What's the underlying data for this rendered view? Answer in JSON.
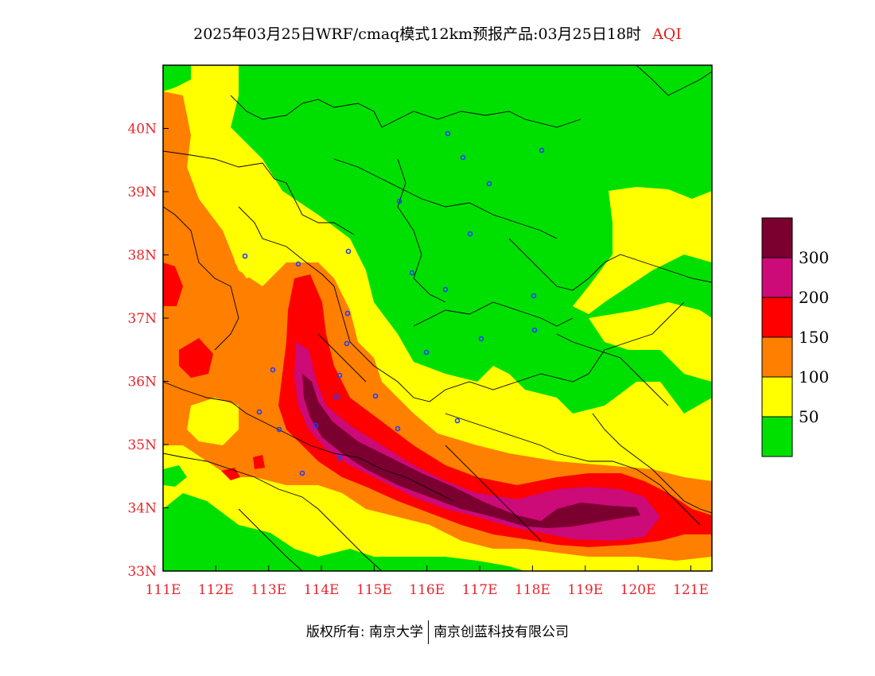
{
  "title": {
    "main": "2025年03月25日WRF/cmaq模式12km预报产品:03月25日18时",
    "variable": "AQI"
  },
  "map": {
    "lon_labels": [
      "111E",
      "112E",
      "113E",
      "114E",
      "115E",
      "116E",
      "117E",
      "118E",
      "119E",
      "120E",
      "121E"
    ],
    "lat_labels": [
      "40N",
      "39N",
      "38N",
      "37N",
      "36N",
      "35N",
      "34N",
      "33N"
    ],
    "lon_range": [
      111,
      121.4
    ],
    "lat_range": [
      33,
      41
    ]
  },
  "legend": {
    "levels": [
      {
        "label": "300",
        "color": "#7b0030"
      },
      {
        "label": "200",
        "color": "#cc0a78"
      },
      {
        "label": "150",
        "color": "#ff0000"
      },
      {
        "label": "100",
        "color": "#ff7f00"
      },
      {
        "label": "50",
        "color": "#ffff00"
      },
      {
        "label": "",
        "color": "#00e000"
      }
    ]
  },
  "footer": {
    "left": "版权所有: 南京大学",
    "right": "南京创蓝科技有限公司"
  }
}
